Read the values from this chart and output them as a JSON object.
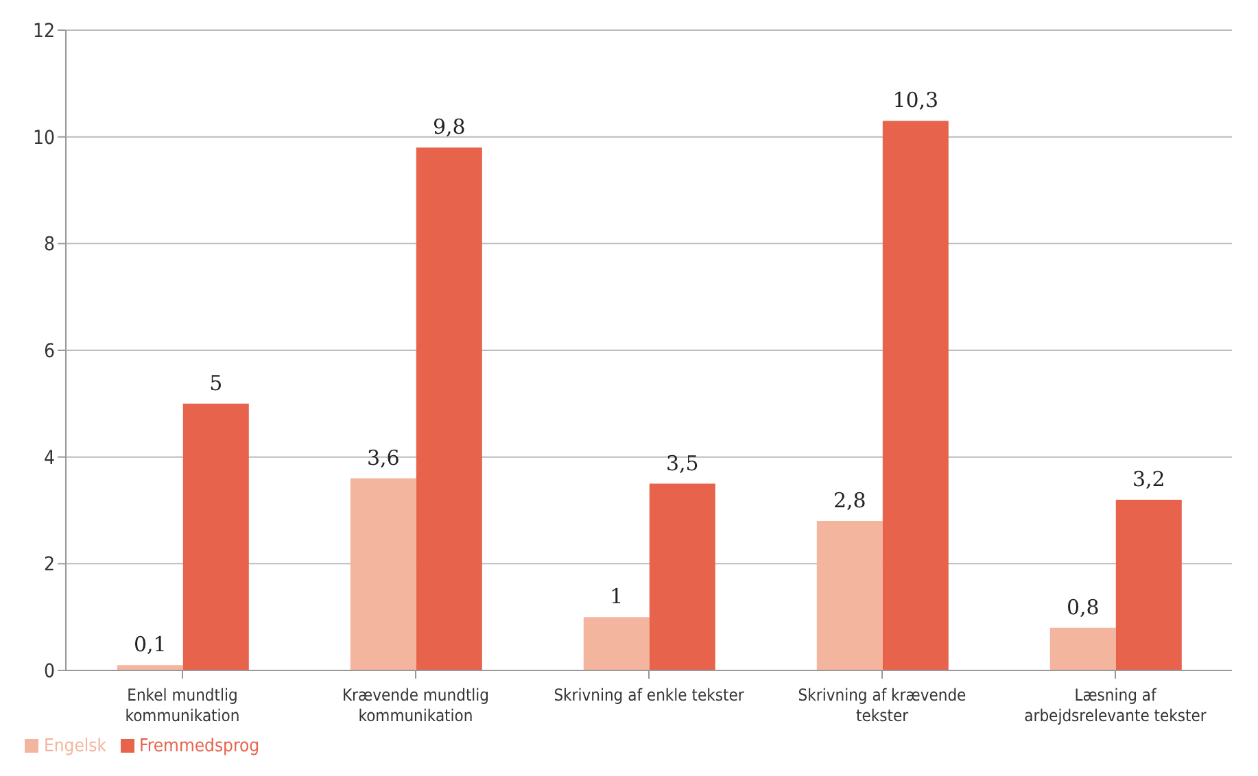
{
  "chart_data": {
    "type": "bar",
    "categories": [
      "Enkel mundtlig kommunikation",
      "Krævende mundtlig kommunikation",
      "Skrivning af enkle tekster",
      "Skrivning af krævende tekster",
      "Læsning af arbejdsrelevante tekster"
    ],
    "series": [
      {
        "name": "Engelsk",
        "color": "#f4b59e",
        "values": [
          0.1,
          3.6,
          1,
          2.8,
          0.8
        ],
        "value_labels": [
          "0,1",
          "3,6",
          "1",
          "2,8",
          "0,8"
        ]
      },
      {
        "name": "Fremmedsprog",
        "color": "#e8634c",
        "values": [
          5,
          9.8,
          3.5,
          10.3,
          3.2
        ],
        "value_labels": [
          "5",
          "9,8",
          "3,5",
          "10,3",
          "3,2"
        ]
      }
    ],
    "ylim": [
      0,
      12
    ],
    "yticks": [
      0,
      2,
      4,
      6,
      8,
      10,
      12
    ],
    "grid": "y",
    "legend": "bottom left"
  }
}
